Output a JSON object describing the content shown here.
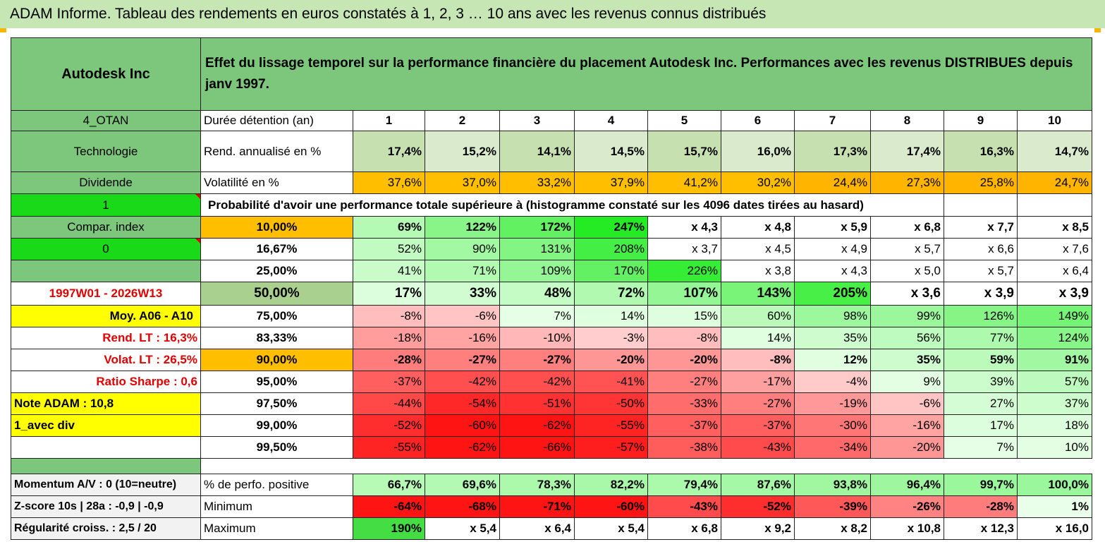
{
  "title": "ADAM Informe. Tableau des rendements en euros constatés à 1, 2, 3 … 10 ans avec les revenus connus distribués",
  "header": {
    "company": "Autodesk Inc",
    "description": "Effet du lissage temporel sur la performance financière du placement Autodesk Inc. Performances avec les revenus DISTRIBUES depuis janv 1997."
  },
  "left_panel": {
    "l0": "4_OTAN",
    "l1": "Technologie",
    "l2": "Dividende",
    "l3": "1",
    "l4": "Compar. index",
    "l5": "0",
    "l6": "",
    "l7": "1997W01 - 2026W13",
    "l8": "Moy. A06 - A10",
    "l9": "Rend. LT :   16,3%",
    "l10": "Volat. LT :   26,5%",
    "l11": "Ratio Sharpe :    0,6",
    "l12": "Note ADAM : 10,8",
    "l13": "1_avec div",
    "l14": ""
  },
  "rows": {
    "durations": {
      "label": "Durée détention (an)",
      "values": [
        "1",
        "2",
        "3",
        "4",
        "5",
        "6",
        "7",
        "8",
        "9",
        "10"
      ]
    },
    "annualized": {
      "label": "Rend. annualisé en %",
      "values": [
        "17,4%",
        "15,2%",
        "14,1%",
        "14,5%",
        "15,7%",
        "16,0%",
        "17,3%",
        "17,4%",
        "16,3%",
        "14,7%"
      ]
    },
    "volatility": {
      "label": "Volatilité en %",
      "values": [
        "37,6%",
        "37,0%",
        "33,2%",
        "37,9%",
        "41,2%",
        "30,2%",
        "24,4%",
        "27,3%",
        "25,8%",
        "24,7%"
      ]
    },
    "probability_caption": "Probabilité d'avoir une performance totale supérieure à (histogramme constaté sur les 4096 dates tirées au hasard)"
  },
  "probabilities": [
    {
      "p": "10,00%",
      "values": [
        "69%",
        "122%",
        "172%",
        "247%",
        "x 4,3",
        "x 4,8",
        "x 5,9",
        "x 6,8",
        "x 7,7",
        "x 8,5"
      ]
    },
    {
      "p": "16,67%",
      "values": [
        "52%",
        "90%",
        "131%",
        "208%",
        "x 3,7",
        "x 4,5",
        "x 4,9",
        "x 5,7",
        "x 6,6",
        "x 7,6"
      ]
    },
    {
      "p": "25,00%",
      "values": [
        "41%",
        "71%",
        "109%",
        "170%",
        "226%",
        "x 3,8",
        "x 4,3",
        "x 5,0",
        "x 5,7",
        "x 6,4"
      ]
    },
    {
      "p": "50,00%",
      "values": [
        "17%",
        "33%",
        "48%",
        "72%",
        "107%",
        "143%",
        "205%",
        "x 3,6",
        "x 3,9",
        "x 3,9"
      ]
    },
    {
      "p": "75,00%",
      "values": [
        "-8%",
        "-6%",
        "7%",
        "14%",
        "15%",
        "60%",
        "98%",
        "99%",
        "126%",
        "149%"
      ]
    },
    {
      "p": "83,33%",
      "values": [
        "-18%",
        "-16%",
        "-10%",
        "-3%",
        "-8%",
        "14%",
        "35%",
        "56%",
        "77%",
        "124%"
      ]
    },
    {
      "p": "90,00%",
      "values": [
        "-28%",
        "-27%",
        "-27%",
        "-20%",
        "-20%",
        "-8%",
        "12%",
        "35%",
        "59%",
        "91%"
      ]
    },
    {
      "p": "95,00%",
      "values": [
        "-37%",
        "-42%",
        "-42%",
        "-41%",
        "-27%",
        "-17%",
        "-4%",
        "9%",
        "39%",
        "57%"
      ]
    },
    {
      "p": "97,50%",
      "values": [
        "-44%",
        "-54%",
        "-51%",
        "-50%",
        "-33%",
        "-27%",
        "-19%",
        "-6%",
        "27%",
        "37%"
      ]
    },
    {
      "p": "99,00%",
      "values": [
        "-52%",
        "-60%",
        "-62%",
        "-55%",
        "-37%",
        "-37%",
        "-30%",
        "-16%",
        "17%",
        "18%"
      ]
    },
    {
      "p": "99,50%",
      "values": [
        "-55%",
        "-62%",
        "-66%",
        "-57%",
        "-38%",
        "-43%",
        "-34%",
        "-20%",
        "7%",
        "10%"
      ]
    }
  ],
  "summary": [
    {
      "left": "Momentum A/V : 0 (10=neutre)",
      "label": "% de perfo. positive",
      "values": [
        "66,7%",
        "69,6%",
        "78,3%",
        "82,2%",
        "79,4%",
        "87,6%",
        "93,8%",
        "96,4%",
        "99,7%",
        "100,0%"
      ]
    },
    {
      "left": "Z-score 10s | 28a : -0,9 | -0,9",
      "label": "Minimum",
      "values": [
        "-64%",
        "-68%",
        "-71%",
        "-60%",
        "-43%",
        "-52%",
        "-39%",
        "-26%",
        "-28%",
        "1%"
      ]
    },
    {
      "left": "Régularité croiss. : 2,5 / 20",
      "label": "Maximum",
      "values": [
        "190%",
        "x 5,4",
        "x 6,4",
        "x 5,4",
        "x 6,8",
        "x 9,2",
        "x 8,2",
        "x 10,8",
        "x 12,3",
        "x 16,0"
      ]
    }
  ],
  "colors": {
    "header_green": "#7cc77c",
    "light_green": "#c7e0b0",
    "orange": "#ffbf00",
    "yellow": "#ffff00",
    "lime": "#19d919",
    "red_text": "#e00000"
  }
}
